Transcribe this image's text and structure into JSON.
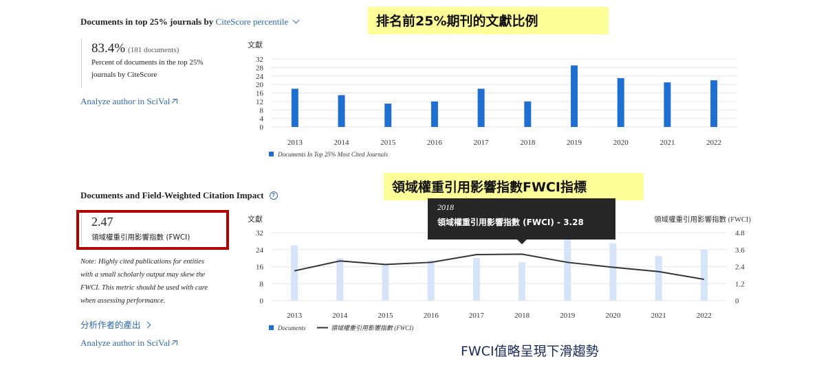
{
  "section1": {
    "title": "Documents in top 25% journals by",
    "title_link": "CiteScore percentile",
    "value": "83.4%",
    "count": "(181 documents)",
    "desc_line1": "Percent of documents in the top 25%",
    "desc_line2": "journals by CiteScore",
    "analyze_link": "Analyze author in SciVal"
  },
  "callout1": "排名前25%期刊的文獻比例",
  "section2": {
    "title": "Documents and Field-Weighted Citation Impact",
    "value": "2.47",
    "value_label": "領域權重引用影響指數 (FWCI)",
    "note_lines": [
      "Note: Highly cited publications for entities",
      "with a small scholarly output may skew the",
      "FWCI. This metric should be used with care",
      "when assessing performance."
    ],
    "analyze_cn": "分析作者的產出",
    "analyze_link": "Analyze author in SciVal"
  },
  "callout2": "領域權重引用影響指數FWCI指標",
  "tooltip": {
    "year": "2018",
    "text": "領域權重引用影響指數 (FWCI) - 3.28"
  },
  "bottom_caption": "FWCI值略呈現下滑趨勢",
  "colors": {
    "bar": "#1f6fd1",
    "bar_light": "#d5e4f8",
    "line": "#333333",
    "link": "#2e6ab3",
    "callout": "#ffff99",
    "red_box": "#b00000"
  },
  "chart_data": [
    {
      "type": "bar",
      "y_axis_title": "文獻",
      "categories": [
        "2013",
        "2014",
        "2015",
        "2016",
        "2017",
        "2018",
        "2019",
        "2020",
        "2021",
        "2022"
      ],
      "series": [
        {
          "name": "Documents In Top 25% Most Cited Journals",
          "values": [
            18,
            15,
            11,
            12,
            18,
            12,
            29,
            23,
            21,
            22
          ]
        }
      ],
      "yticks": [
        0,
        4,
        8,
        12,
        16,
        20,
        24,
        28,
        32
      ],
      "ylim": [
        0,
        32
      ],
      "legend_position": "bottom-left"
    },
    {
      "type": "bar+line",
      "y_axis_title": "文獻",
      "y2_axis_title": "領域權重引用影響指數 (FWCI)",
      "categories": [
        "2013",
        "2014",
        "2015",
        "2016",
        "2017",
        "2018",
        "2019",
        "2020",
        "2021",
        "2022"
      ],
      "series": [
        {
          "name": "Documents",
          "type": "bar",
          "axis": "left",
          "values": [
            26,
            20,
            17,
            19,
            20,
            18,
            30,
            27,
            21,
            24
          ]
        },
        {
          "name": "領域權重引用影響指數 (FWCI)",
          "type": "line",
          "axis": "right",
          "values": [
            2.1,
            2.8,
            2.55,
            2.7,
            3.25,
            3.28,
            2.7,
            2.35,
            2.05,
            1.5
          ]
        }
      ],
      "yticks": [
        0,
        8,
        16,
        24,
        32
      ],
      "y2ticks": [
        "0",
        "1.2",
        "2.4",
        "3.6",
        "4.8"
      ],
      "ylim": [
        0,
        32
      ],
      "y2lim": [
        0,
        4.8
      ],
      "legend_position": "bottom-left"
    }
  ]
}
